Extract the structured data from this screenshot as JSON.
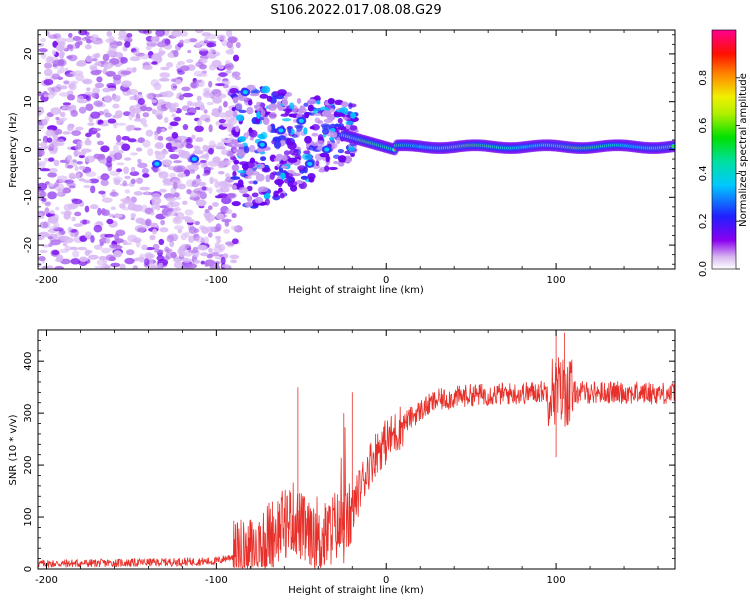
{
  "figure_title": "S106.2022.017.08.08.G29",
  "chart_data": [
    {
      "type": "heatmap",
      "title": "",
      "xlabel": "Height of straight line (km)",
      "ylabel": "Frequency (Hz)",
      "xlim": [
        -205,
        170
      ],
      "ylim": [
        -25,
        25
      ],
      "xticks": [
        -200,
        -100,
        0,
        100
      ],
      "yticks": [
        -20,
        -10,
        0,
        10,
        20
      ],
      "colorbar": {
        "label": "Normalized spectral amplitude",
        "range": [
          0,
          1
        ],
        "ticks": [
          0.0,
          0.2,
          0.4,
          0.6,
          0.8
        ],
        "colormap": "rainbow (white-purple-blue-cyan-green-yellow-red-magenta)"
      },
      "description_regions": [
        {
          "x_range": [
            -205,
            -90
          ],
          "character": "broadband noise, low amplitude scattered across all frequencies"
        },
        {
          "x_range": [
            -90,
            -20
          ],
          "character": "strong scintillation, energy spread roughly -10 to +15 Hz"
        },
        {
          "x_range": [
            -20,
            170
          ],
          "character": "narrow carrier line near 0 to +2 Hz, high amplitude"
        }
      ],
      "grid": false
    },
    {
      "type": "line",
      "title": "",
      "xlabel": "Height of straight line (km)",
      "ylabel": "SNR (10 * v/v)",
      "xlim": [
        -205,
        170
      ],
      "ylim": [
        0,
        460
      ],
      "xticks": [
        -200,
        -100,
        0,
        100
      ],
      "yticks": [
        0,
        100,
        200,
        300,
        400
      ],
      "color": "#e8302a",
      "series_profile": [
        [
          -205,
          10
        ],
        [
          -150,
          12
        ],
        [
          -100,
          15
        ],
        [
          -80,
          35
        ],
        [
          -65,
          75
        ],
        [
          -55,
          100
        ],
        [
          -50,
          80
        ],
        [
          -45,
          60
        ],
        [
          -40,
          45
        ],
        [
          -30,
          85
        ],
        [
          -25,
          75
        ],
        [
          -20,
          110
        ],
        [
          -15,
          160
        ],
        [
          -10,
          200
        ],
        [
          -5,
          230
        ],
        [
          0,
          245
        ],
        [
          5,
          260
        ],
        [
          10,
          280
        ],
        [
          20,
          305
        ],
        [
          30,
          325
        ],
        [
          50,
          335
        ],
        [
          80,
          338
        ],
        [
          100,
          345
        ],
        [
          110,
          340
        ],
        [
          130,
          340
        ],
        [
          170,
          338
        ]
      ],
      "spikes": [
        {
          "x": -52,
          "y": 350
        },
        {
          "x": -20,
          "y": 340
        },
        {
          "x": -25,
          "y": 300
        },
        {
          "x": 100,
          "y": 460
        },
        {
          "x": 105,
          "y": 455
        },
        {
          "x": 100,
          "y": 215
        }
      ],
      "grid": false
    }
  ]
}
